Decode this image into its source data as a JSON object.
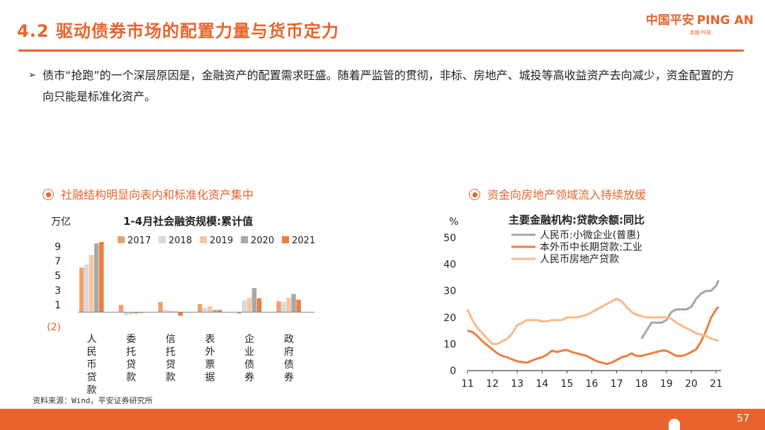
{
  "header": {
    "title": "4.2 驱动债券市场的配置力量与货币定力",
    "logo_cn": "中国平安",
    "logo_en": "PING AN",
    "logo_sub": "金融·科技"
  },
  "bullet": {
    "arrow": "➢",
    "text": "债市“抢跑”的一个深层原因是，金融资产的配置需求旺盛。随着严监管的贯彻，非标、房地产、城投等高收益资产去向减少，资金配置的方向只能是标准化资产。"
  },
  "section_left": {
    "title": "社融结构明显向表内和标准化资产集中"
  },
  "section_right": {
    "title": "资金向房地产领域流入持续放缓"
  },
  "source": "资料来源：Wind，平安证券研究所",
  "page_number": "57",
  "chart_data": [
    {
      "type": "bar",
      "title": "1-4月社会融资规模:累计值",
      "unit": "万亿",
      "categories": [
        "人民币贷款",
        "委托贷款",
        "信托贷款",
        "表外票据",
        "企业债券",
        "政府债券"
      ],
      "series": [
        {
          "name": "2017",
          "color": "#f0a070",
          "values": [
            6.1,
            1.0,
            1.4,
            1.1,
            -0.2,
            1.5
          ]
        },
        {
          "name": "2018",
          "color": "#d9d9d9",
          "values": [
            6.5,
            -0.4,
            0.3,
            0.6,
            1.6,
            1.4
          ]
        },
        {
          "name": "2019",
          "color": "#f7c6a4",
          "values": [
            7.8,
            -0.3,
            0.2,
            0.8,
            1.9,
            2.0
          ]
        },
        {
          "name": "2020",
          "color": "#a8a8a8",
          "values": [
            9.4,
            -0.2,
            0.1,
            0.3,
            3.3,
            2.5
          ]
        },
        {
          "name": "2021",
          "color": "#ee7d3e",
          "values": [
            9.6,
            -0.1,
            -0.5,
            0.3,
            1.9,
            1.7
          ]
        }
      ],
      "yticks": [
        "9",
        "7",
        "5",
        "3",
        "1",
        "(2)"
      ],
      "ylim": [
        -2,
        10
      ]
    },
    {
      "type": "line",
      "title": "主要金融机构:贷款余额:同比",
      "unit": "%",
      "x_ticks": [
        "11",
        "12",
        "13",
        "14",
        "15",
        "16",
        "17",
        "18",
        "19",
        "20",
        "21"
      ],
      "y_ticks": [
        "50",
        "40",
        "30",
        "20",
        "10",
        "0"
      ],
      "ylim": [
        0,
        50
      ],
      "xlim": [
        2011,
        2021.2
      ],
      "series": [
        {
          "name": "人民币:小微企业(普惠)",
          "color": "#a6a6a6",
          "x": [
            2018.0,
            2018.2,
            2018.4,
            2018.6,
            2018.8,
            2019.0,
            2019.2,
            2019.4,
            2019.6,
            2019.8,
            2020.0,
            2020.2,
            2020.4,
            2020.6,
            2020.8,
            2021.0,
            2021.1
          ],
          "y": [
            12,
            15,
            18,
            18,
            18,
            19,
            22,
            23,
            23,
            23,
            24,
            27,
            29,
            30,
            30,
            32,
            34
          ]
        },
        {
          "name": "本外币中长期贷款:工业",
          "color": "#ee7d3e",
          "x": [
            2011.0,
            2011.2,
            2011.4,
            2011.6,
            2011.8,
            2012.0,
            2012.2,
            2012.4,
            2012.6,
            2012.8,
            2013.0,
            2013.2,
            2013.4,
            2013.6,
            2013.8,
            2014.0,
            2014.2,
            2014.4,
            2014.6,
            2014.8,
            2015.0,
            2015.2,
            2015.4,
            2015.6,
            2015.8,
            2016.0,
            2016.2,
            2016.4,
            2016.6,
            2016.8,
            2017.0,
            2017.2,
            2017.4,
            2017.6,
            2017.8,
            2018.0,
            2018.2,
            2018.4,
            2018.6,
            2018.8,
            2019.0,
            2019.2,
            2019.4,
            2019.6,
            2019.8,
            2020.0,
            2020.2,
            2020.4,
            2020.6,
            2020.8,
            2021.0,
            2021.1
          ],
          "y": [
            15,
            14.5,
            13,
            11,
            9.5,
            8,
            6.5,
            5.5,
            5,
            4.2,
            3.5,
            3.2,
            3,
            3.8,
            4.5,
            5,
            6,
            7.5,
            7,
            7.5,
            7.8,
            7,
            6.5,
            6,
            5.5,
            4.5,
            3.5,
            3,
            2.5,
            3,
            4,
            5,
            5.5,
            6.5,
            5.5,
            5.5,
            6,
            6.5,
            7,
            7.5,
            7.5,
            6.5,
            5.5,
            5.5,
            6,
            7,
            8,
            11,
            15,
            20,
            23,
            24
          ]
        },
        {
          "name": "人民币房地产贷款",
          "color": "#f7b98a",
          "x": [
            2011.0,
            2011.2,
            2011.4,
            2011.6,
            2011.8,
            2012.0,
            2012.2,
            2012.4,
            2012.6,
            2012.8,
            2013.0,
            2013.2,
            2013.4,
            2013.6,
            2013.8,
            2014.0,
            2014.2,
            2014.4,
            2014.6,
            2014.8,
            2015.0,
            2015.2,
            2015.4,
            2015.6,
            2015.8,
            2016.0,
            2016.2,
            2016.4,
            2016.6,
            2016.8,
            2017.0,
            2017.2,
            2017.4,
            2017.6,
            2017.8,
            2018.0,
            2018.2,
            2018.4,
            2018.6,
            2018.8,
            2019.0,
            2019.2,
            2019.4,
            2019.6,
            2019.8,
            2020.0,
            2020.2,
            2020.4,
            2020.6,
            2020.8,
            2021.0,
            2021.1
          ],
          "y": [
            23,
            19,
            16,
            14,
            12,
            10,
            10,
            11,
            12,
            14,
            17,
            18,
            19,
            19,
            19,
            18.5,
            18.5,
            19,
            19,
            19,
            20,
            20,
            20,
            20.5,
            21,
            22,
            23,
            24,
            25,
            26,
            27,
            26,
            24,
            22,
            21,
            20.5,
            20,
            20,
            20,
            20,
            20,
            19.5,
            18,
            17,
            16,
            15,
            14,
            13.5,
            13,
            12,
            11.5,
            11
          ]
        }
      ]
    }
  ]
}
